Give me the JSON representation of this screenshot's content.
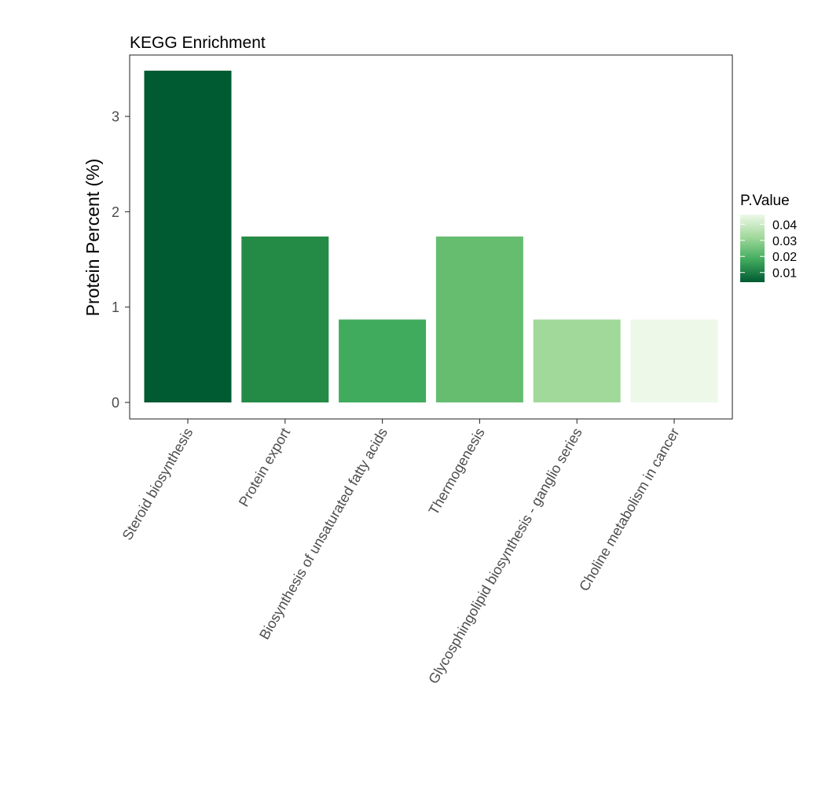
{
  "chart_data": {
    "type": "bar",
    "title": "KEGG Enrichment",
    "xlabel": "",
    "ylabel": "Protein Percent (%)",
    "categories": [
      "Steroid biosynthesis",
      "Protein export",
      "Biosynthesis of unsaturated fatty acids",
      "Thermogenesis",
      "Glycosphingolipid biosynthesis - ganglio series",
      "Choline metabolism in cancer"
    ],
    "values": [
      3.48,
      1.74,
      0.87,
      1.74,
      0.87,
      0.87
    ],
    "p_values": [
      0.004,
      0.015,
      0.024,
      0.029,
      0.038,
      0.046
    ],
    "colors": [
      "#005a32",
      "#238b45",
      "#41ab5d",
      "#66bd6f",
      "#a1d99b",
      "#edf8e9"
    ],
    "yticks": [
      0,
      1,
      2,
      3
    ],
    "ylim": [
      0,
      3.48
    ],
    "grid": false,
    "legend": {
      "title": "P.Value",
      "position": "right",
      "labels": [
        "0.04",
        "0.03",
        "0.02",
        "0.01"
      ],
      "label_values": [
        0.04,
        0.03,
        0.02,
        0.01
      ],
      "range": [
        0.004,
        0.046
      ],
      "gradient": [
        "#edf8e9",
        "#a1d99b",
        "#41ab5d",
        "#005a32"
      ]
    }
  }
}
